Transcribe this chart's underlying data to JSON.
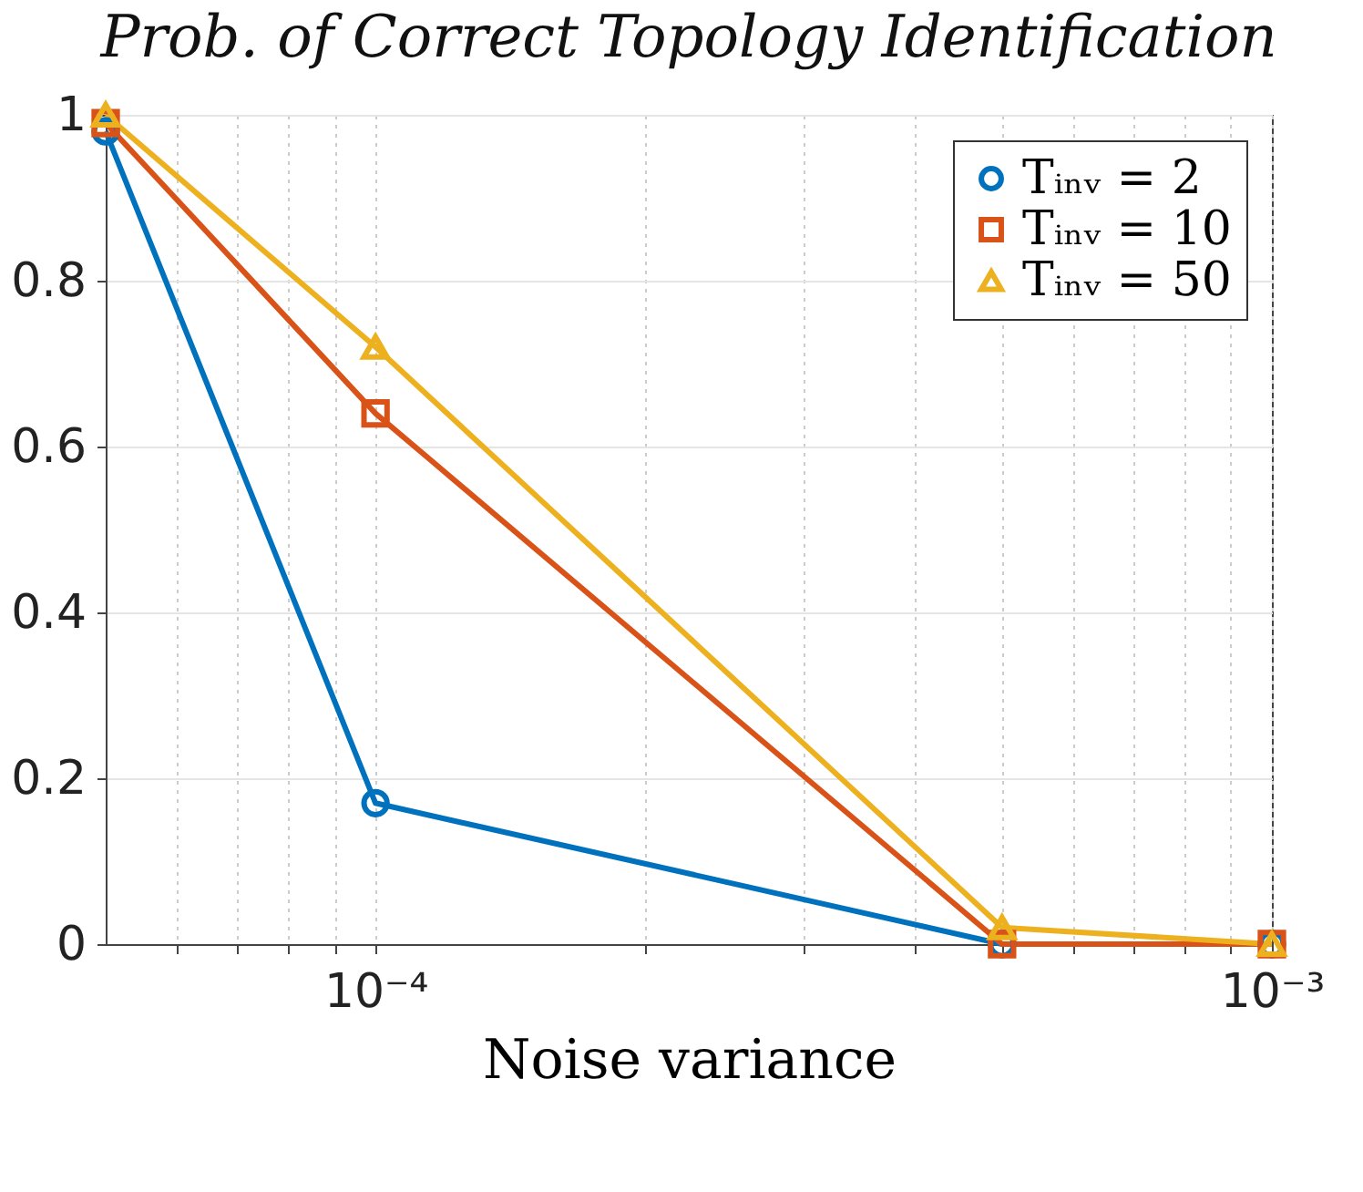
{
  "chart_data": {
    "type": "line",
    "title": "Prob. of Correct Topology Identification",
    "xlabel": "Noise variance",
    "log": "x",
    "x": [
      5e-05,
      0.0001,
      0.0005,
      0.001
    ],
    "series": [
      {
        "name": "Tᵢₙᵥ = 2",
        "color": "#0072bd",
        "marker": "circle",
        "values": [
          0.98,
          0.17,
          0,
          0
        ]
      },
      {
        "name": "Tᵢₙᵥ = 10",
        "color": "#d95319",
        "marker": "square",
        "values": [
          0.99,
          0.64,
          0,
          0
        ]
      },
      {
        "name": "Tᵢₙᵥ = 50",
        "color": "#edb120",
        "marker": "triangle",
        "values": [
          1,
          0.72,
          0.02,
          0
        ]
      }
    ],
    "xlim": [
      5e-05,
      0.001
    ],
    "xticks": [
      {
        "value": 6e-05,
        "label": null
      },
      {
        "value": 7e-05,
        "label": null
      },
      {
        "value": 8e-05,
        "label": null
      },
      {
        "value": 9e-05,
        "label": null
      },
      {
        "value": 0.0001,
        "label": "10⁻⁴"
      },
      {
        "value": 0.0002,
        "label": null
      },
      {
        "value": 0.0003,
        "label": null
      },
      {
        "value": 0.0004,
        "label": null
      },
      {
        "value": 0.0005,
        "label": null
      },
      {
        "value": 0.0006,
        "label": null
      },
      {
        "value": 0.0007,
        "label": null
      },
      {
        "value": 0.0008,
        "label": null
      },
      {
        "value": 0.0009,
        "label": null
      },
      {
        "value": 0.001,
        "label": "10⁻³"
      }
    ],
    "ylim": [
      0,
      1
    ],
    "yticks": [
      0,
      0.2,
      0.4,
      0.6,
      0.8,
      1
    ],
    "grid": true,
    "legend": "top right",
    "line_style": "solid"
  }
}
